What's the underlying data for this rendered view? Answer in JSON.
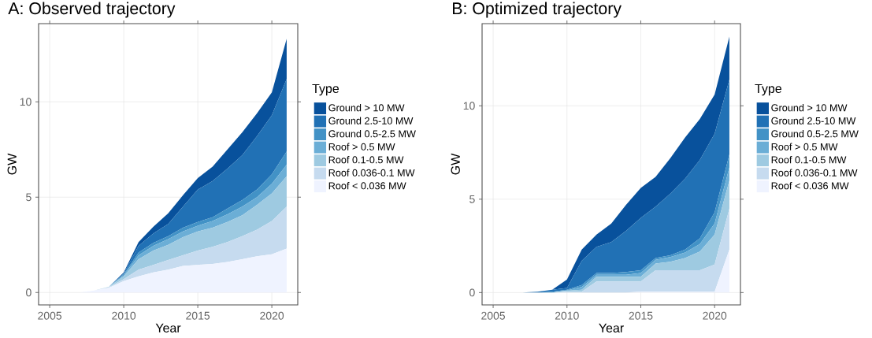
{
  "chart_data": [
    {
      "type": "area",
      "title": "A: Observed trajectory",
      "xlabel": "Year",
      "ylabel": "GW",
      "legend_title": "Type",
      "stacked": true,
      "grid": true,
      "legend": "right",
      "x": [
        2005,
        2006,
        2007,
        2008,
        2009,
        2010,
        2011,
        2012,
        2013,
        2014,
        2015,
        2016,
        2017,
        2018,
        2019,
        2020,
        2021
      ],
      "xlim": [
        2004.25,
        2021.75
      ],
      "xticks": [
        2005,
        2010,
        2015,
        2020
      ],
      "ylim": [
        -0.65,
        14.1
      ],
      "yticks": [
        0,
        5,
        10
      ],
      "series": [
        {
          "name": "Roof < 0.036 MW",
          "color": "#eff3ff",
          "values": [
            0,
            0,
            0,
            0.1,
            0.25,
            0.6,
            0.85,
            1.05,
            1.2,
            1.4,
            1.45,
            1.5,
            1.6,
            1.75,
            1.9,
            2.0,
            2.3
          ]
        },
        {
          "name": "Roof 0.036-0.1 MW",
          "color": "#c6dbef",
          "values": [
            0,
            0,
            0,
            0,
            0.03,
            0.1,
            0.35,
            0.4,
            0.5,
            0.55,
            0.75,
            0.9,
            1.05,
            1.2,
            1.4,
            1.75,
            2.2
          ]
        },
        {
          "name": "Roof 0.1-0.5 MW",
          "color": "#9ecae1",
          "values": [
            0,
            0,
            0,
            0,
            0.02,
            0.15,
            0.55,
            0.75,
            0.8,
            0.95,
            1.0,
            1.0,
            1.05,
            1.1,
            1.3,
            1.45,
            1.6
          ]
        },
        {
          "name": "Roof > 0.5 MW",
          "color": "#6baed6",
          "values": [
            0,
            0,
            0,
            0,
            0,
            0.05,
            0.2,
            0.25,
            0.3,
            0.3,
            0.3,
            0.35,
            0.4,
            0.45,
            0.4,
            0.5,
            0.6
          ]
        },
        {
          "name": "Ground 0.5-2.5 MW",
          "color": "#4292c6",
          "values": [
            0,
            0,
            0,
            0,
            0,
            0.05,
            0.15,
            0.15,
            0.15,
            0.2,
            0.2,
            0.2,
            0.3,
            0.35,
            0.4,
            0.5,
            0.7
          ]
        },
        {
          "name": "Ground 2.5-10 MW",
          "color": "#2171b5",
          "values": [
            0,
            0,
            0,
            0,
            0,
            0.05,
            0.35,
            0.5,
            0.65,
            1.1,
            1.7,
            1.9,
            2.1,
            2.35,
            2.8,
            3.1,
            3.8
          ]
        },
        {
          "name": "Ground > 10 MW",
          "color": "#08519c",
          "values": [
            0,
            0,
            0,
            0,
            0,
            0.05,
            0.2,
            0.35,
            0.55,
            0.6,
            0.6,
            0.75,
            1.0,
            1.2,
            1.2,
            1.2,
            2.1
          ]
        }
      ]
    },
    {
      "type": "area",
      "title": "B: Optimized trajectory",
      "xlabel": "Year",
      "ylabel": "GW",
      "legend_title": "Type",
      "stacked": true,
      "grid": true,
      "legend": "right",
      "x": [
        2005,
        2006,
        2007,
        2008,
        2009,
        2010,
        2011,
        2012,
        2013,
        2014,
        2015,
        2016,
        2017,
        2018,
        2019,
        2020,
        2021
      ],
      "xlim": [
        2004.25,
        2021.75
      ],
      "xticks": [
        2005,
        2010,
        2015,
        2020
      ],
      "ylim": [
        -0.66,
        14.4
      ],
      "yticks": [
        0,
        5,
        10
      ],
      "series": [
        {
          "name": "Roof < 0.036 MW",
          "color": "#eff3ff",
          "values": [
            0,
            0,
            0,
            0,
            0,
            0,
            0,
            0,
            0,
            0,
            0.05,
            0.05,
            0.05,
            0.05,
            0.05,
            0.05,
            2.3
          ]
        },
        {
          "name": "Roof 0.036-0.1 MW",
          "color": "#c6dbef",
          "values": [
            0,
            0,
            0,
            0,
            0,
            0.05,
            0.05,
            0.6,
            0.6,
            0.6,
            0.55,
            1.15,
            1.15,
            1.15,
            1.15,
            1.45,
            2.2
          ]
        },
        {
          "name": "Roof 0.1-0.5 MW",
          "color": "#9ecae1",
          "values": [
            0,
            0,
            0,
            0,
            0,
            0.05,
            0.1,
            0.25,
            0.25,
            0.25,
            0.25,
            0.35,
            0.45,
            0.65,
            1.0,
            1.6,
            1.5
          ]
        },
        {
          "name": "Roof > 0.5 MW",
          "color": "#6baed6",
          "values": [
            0,
            0,
            0,
            0,
            0,
            0.02,
            0.15,
            0.1,
            0.1,
            0.1,
            0.2,
            0.2,
            0.25,
            0.3,
            0.4,
            0.6,
            0.7
          ]
        },
        {
          "name": "Ground 0.5-2.5 MW",
          "color": "#4292c6",
          "values": [
            0,
            0,
            0,
            0,
            0.05,
            0.03,
            0.1,
            0.1,
            0.1,
            0.15,
            0.15,
            0.1,
            0.1,
            0.15,
            0.3,
            0.6,
            0.7
          ]
        },
        {
          "name": "Ground 2.5-10 MW",
          "color": "#2171b5",
          "values": [
            0,
            0,
            0,
            0.05,
            0.1,
            0.1,
            1.3,
            1.4,
            1.65,
            2.2,
            2.8,
            2.75,
            3.3,
            3.8,
            4.2,
            4.2,
            4.0
          ]
        },
        {
          "name": "Ground > 10 MW",
          "color": "#08519c",
          "values": [
            0,
            0,
            0,
            0,
            0,
            0.45,
            0.6,
            0.65,
            1.0,
            1.4,
            1.6,
            1.6,
            1.9,
            2.2,
            2.2,
            2.1,
            2.3
          ]
        }
      ]
    }
  ]
}
